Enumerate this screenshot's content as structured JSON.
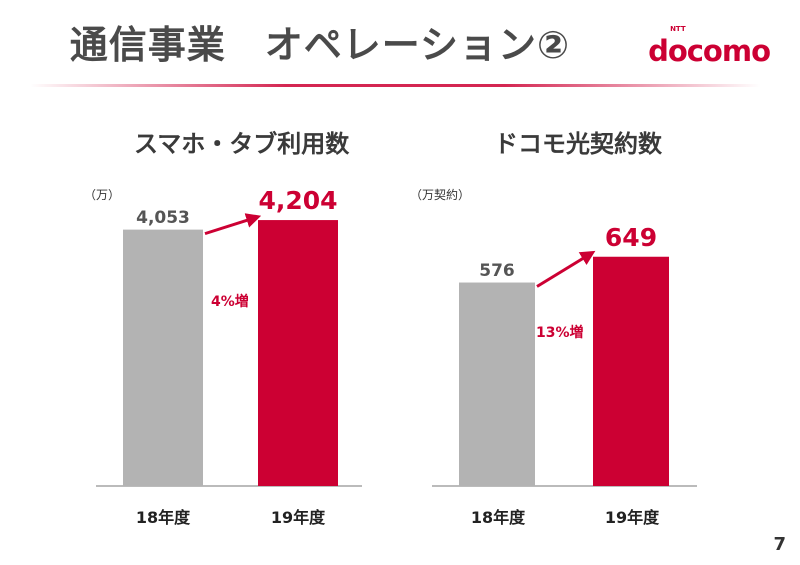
{
  "header": {
    "title": "通信事業　オペレーション②",
    "logo_text": "docomo",
    "logo_small": "NTT"
  },
  "page_number": "7",
  "colors": {
    "accent": "#cc0033",
    "prev_bar": "#b3b3b3"
  },
  "chart_data": [
    {
      "type": "bar",
      "title": "スマホ・タブ利用数",
      "unit": "（万）",
      "categories": [
        "18年度",
        "19年度"
      ],
      "values": [
        4053,
        4204
      ],
      "value_labels": [
        "4,053",
        "4,204"
      ],
      "growth_label": "4%増",
      "ylim": [
        0,
        4300
      ]
    },
    {
      "type": "bar",
      "title": "ドコモ光契約数",
      "unit": "（万契約）",
      "categories": [
        "18年度",
        "19年度"
      ],
      "values": [
        576,
        649
      ],
      "value_labels": [
        "576",
        "649"
      ],
      "growth_label": "13%増",
      "ylim": [
        0,
        770
      ]
    }
  ]
}
